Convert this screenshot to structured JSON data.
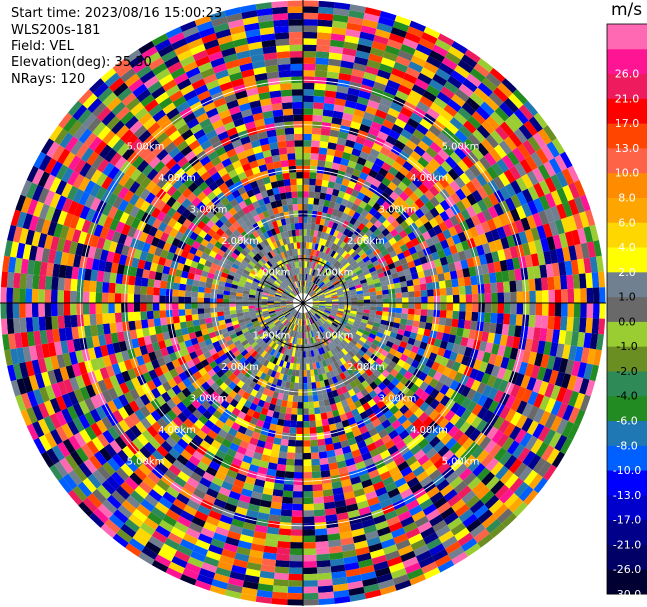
{
  "info": {
    "start_time": "Start time: 2023/08/16 15:00:23",
    "station": "WLS200s-181",
    "field": "Field: VEL",
    "elevation": "Elevation(deg): 35.30",
    "nrays": "NRays: 120"
  },
  "chart_data": {
    "type": "heatmap",
    "projection": "polar-ppi",
    "field": "VEL",
    "unit": "m/s",
    "n_rays": 120,
    "range_rings_km": [
      1.0,
      2.0,
      3.0,
      4.0,
      5.0
    ],
    "range_ring_labels": [
      "1.00km",
      "2.00km",
      "3.00km",
      "4.00km",
      "5.00km"
    ],
    "colorbar": {
      "label": "m/s",
      "bounds": [
        -30.0,
        -26.0,
        -21.0,
        -17.0,
        -13.0,
        -10.0,
        -8.0,
        -6.0,
        -4.0,
        -2.0,
        -1.0,
        0.0,
        1.0,
        2.0,
        4.0,
        6.0,
        8.0,
        10.0,
        13.0,
        17.0,
        21.0,
        26.0
      ],
      "tick_labels": [
        "-30.0",
        "-26.0",
        "-21.0",
        "-17.0",
        "-13.0",
        "-10.0",
        "-8.0",
        "-6.0",
        "-4.0",
        "-2.0",
        "-1.0",
        "0.0",
        "1.0",
        "2.0",
        "4.0",
        "6.0",
        "8.0",
        "10.0",
        "13.0",
        "17.0",
        "21.0",
        "26.0"
      ],
      "colors": [
        "#000033",
        "#000066",
        "#00008b",
        "#0000cd",
        "#0000ff",
        "#0060ff",
        "#1f78b4",
        "#228b22",
        "#2e8b57",
        "#6b8e23",
        "#9acd32",
        "#696969",
        "#708090",
        "#ffff00",
        "#ffd700",
        "#ffa500",
        "#ff8c00",
        "#ff6347",
        "#ff4500",
        "#ff0000",
        "#ee1c5e",
        "#ff1493",
        "#ff69b4"
      ]
    }
  }
}
